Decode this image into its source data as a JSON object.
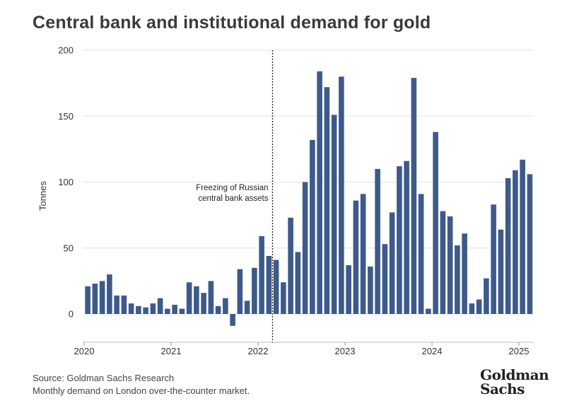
{
  "header": {
    "title": "Central bank and institutional demand for gold"
  },
  "footer": {
    "source": "Source: Goldman Sachs Research",
    "note": "Monthly demand on London over-the-counter market.",
    "logo_line1": "Goldman",
    "logo_line2": "Sachs"
  },
  "chart_data": {
    "type": "bar",
    "title": "Central bank and institutional demand for gold",
    "ylabel": "Tonnes",
    "xlabel": "",
    "ylim": [
      -20,
      200
    ],
    "yticks": [
      0,
      50,
      100,
      150,
      200
    ],
    "xticks": [
      "2020",
      "2021",
      "2022",
      "2023",
      "2024",
      "2025"
    ],
    "grid": "horizontal",
    "bar_color": "#3d5a8a",
    "start": "2020-01",
    "values": [
      21,
      23,
      25,
      30,
      14,
      14,
      8,
      6,
      5,
      8,
      12,
      4,
      7,
      4,
      24,
      21,
      16,
      25,
      6,
      12,
      -9,
      34,
      10,
      35,
      59,
      44,
      41,
      24,
      73,
      47,
      100,
      132,
      184,
      172,
      151,
      180,
      37,
      86,
      91,
      36,
      110,
      53,
      77,
      112,
      116,
      179,
      91,
      4,
      138,
      78,
      74,
      52,
      61,
      8,
      11,
      27,
      83,
      64,
      103,
      109,
      117,
      106
    ],
    "annotation": {
      "text_line1": "Freezing of Russian",
      "text_line2": "central bank assets",
      "at": "2022-03"
    }
  }
}
